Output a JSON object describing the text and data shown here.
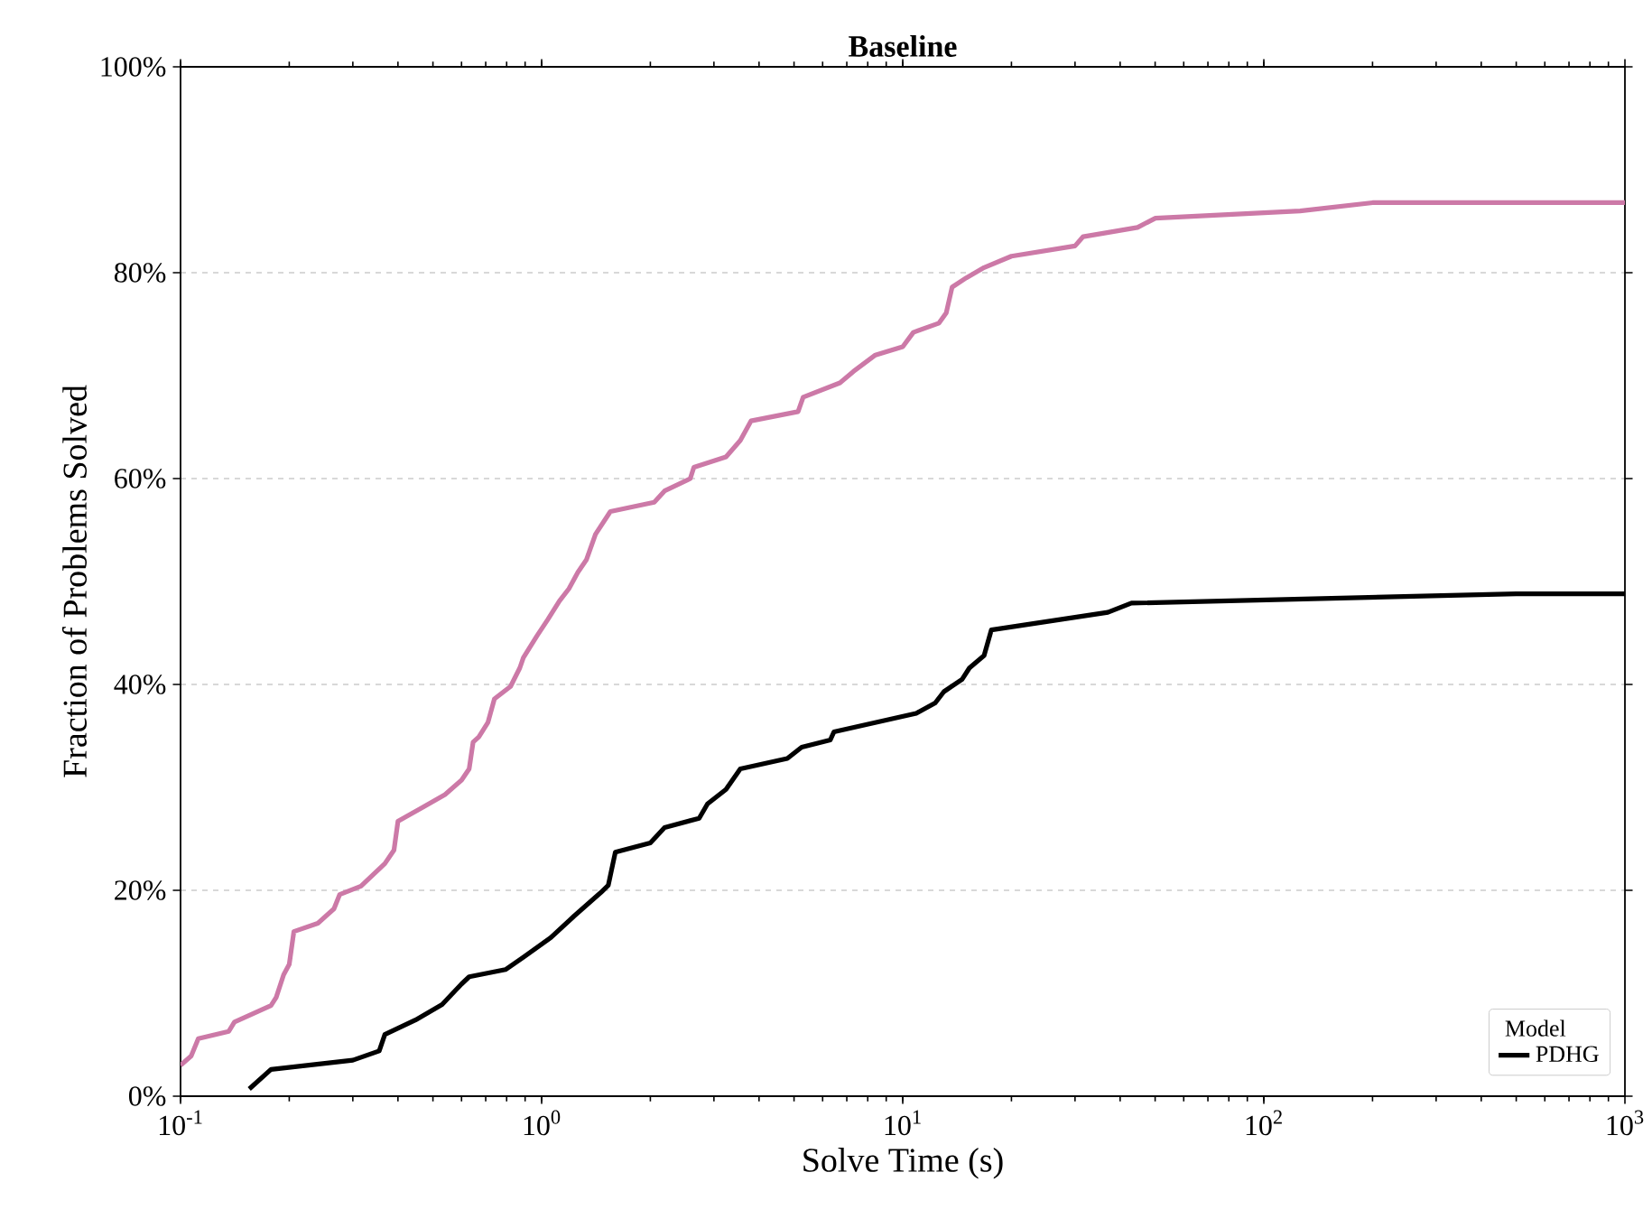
{
  "chart_data": {
    "type": "line",
    "title": "Baseline",
    "xlabel": "Solve Time (s)",
    "ylabel": "Fraction of Problems Solved",
    "legend_title": "Model",
    "legend": "bottom right",
    "grid": "y",
    "log": "x",
    "line_style": "solid",
    "xlim": [
      0.1,
      1000
    ],
    "xticks": [
      {
        "value": 0.1,
        "label": "10$^{-1}$"
      },
      {
        "value": 1,
        "label": "10$^{0}$"
      },
      {
        "value": 10,
        "label": "10$^{1}$"
      },
      {
        "value": 100,
        "label": "10$^{2}$"
      },
      {
        "value": 1000,
        "label": "10$^{3}$"
      }
    ],
    "ylim": [
      0,
      100
    ],
    "yticks": [
      {
        "value": 0,
        "label": "0%"
      },
      {
        "value": 20,
        "label": "20%"
      },
      {
        "value": 40,
        "label": "40%"
      },
      {
        "value": 60,
        "label": "60%"
      },
      {
        "value": 80,
        "label": "80%"
      },
      {
        "value": 100,
        "label": "100%"
      }
    ],
    "series": [
      {
        "name": "PDHG",
        "color": "#000000",
        "x": [
          0.155,
          0.178,
          0.3,
          0.355,
          0.368,
          0.447,
          0.53,
          0.6,
          0.63,
          0.794,
          0.89,
          1.06,
          1.23,
          1.46,
          1.53,
          1.6,
          2.0,
          2.19,
          2.73,
          2.88,
          3.24,
          3.55,
          4.79,
          5.25,
          6.3,
          6.45,
          10.9,
          12.3,
          13.0,
          14.6,
          15.3,
          16.8,
          17.6,
          37.0,
          43.0,
          500,
          1000
        ],
        "values": [
          0.7,
          2.6,
          3.5,
          4.4,
          6.0,
          7.4,
          8.9,
          10.9,
          11.6,
          12.3,
          13.5,
          15.4,
          17.5,
          19.8,
          20.5,
          23.7,
          24.6,
          26.1,
          27.0,
          28.4,
          29.8,
          31.8,
          32.8,
          33.9,
          34.6,
          35.4,
          37.2,
          38.2,
          39.3,
          40.5,
          41.6,
          42.8,
          45.3,
          47.0,
          47.9,
          48.8,
          48.8
        ]
      },
      {
        "color": "#cc79a7",
        "x": [
          0.1,
          0.107,
          0.112,
          0.136,
          0.141,
          0.178,
          0.184,
          0.193,
          0.2,
          0.206,
          0.24,
          0.266,
          0.276,
          0.316,
          0.368,
          0.39,
          0.4,
          0.47,
          0.54,
          0.6,
          0.63,
          0.646,
          0.67,
          0.71,
          0.74,
          0.82,
          0.87,
          0.89,
          0.97,
          1.04,
          1.12,
          1.19,
          1.26,
          1.33,
          1.41,
          1.55,
          2.05,
          2.19,
          2.58,
          2.64,
          3.24,
          3.55,
          3.8,
          5.13,
          5.3,
          6.7,
          7.3,
          8.4,
          10.0,
          10.7,
          12.6,
          13.2,
          13.7,
          15.0,
          16.8,
          20.0,
          30.0,
          31.6,
          44.7,
          50.1,
          126,
          200,
          1000
        ],
        "values": [
          3.0,
          3.9,
          5.6,
          6.3,
          7.2,
          8.8,
          9.6,
          11.8,
          12.8,
          16.0,
          16.8,
          18.2,
          19.6,
          20.4,
          22.6,
          23.9,
          26.7,
          28.1,
          29.3,
          30.7,
          31.8,
          34.4,
          34.9,
          36.3,
          38.6,
          39.8,
          41.6,
          42.6,
          44.7,
          46.3,
          48.1,
          49.3,
          50.9,
          52.1,
          54.6,
          56.8,
          57.7,
          58.8,
          60.0,
          61.1,
          62.1,
          63.7,
          65.6,
          66.5,
          67.9,
          69.3,
          70.4,
          72.0,
          72.8,
          74.2,
          75.1,
          76.1,
          78.6,
          79.5,
          80.5,
          81.6,
          82.6,
          83.5,
          84.4,
          85.3,
          86.0,
          86.8,
          86.8
        ]
      }
    ]
  }
}
